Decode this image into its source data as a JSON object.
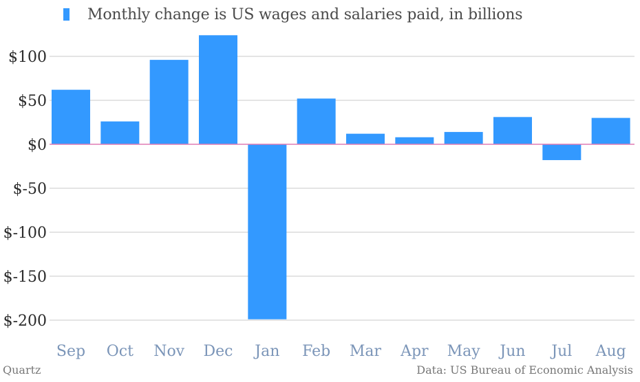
{
  "chart_data": {
    "type": "bar",
    "categories": [
      "Sep",
      "Oct",
      "Nov",
      "Dec",
      "Jan",
      "Feb",
      "Mar",
      "Apr",
      "May",
      "Jun",
      "Jul",
      "Aug"
    ],
    "series": [
      {
        "name": "Monthly change is US wages and salaries paid, in billions",
        "values": [
          62,
          26,
          96,
          124,
          -199,
          52,
          12,
          8,
          14,
          31,
          -18,
          30
        ],
        "color": "#3399ff"
      }
    ],
    "ylim": [
      -200,
      125
    ],
    "yticks": [
      100,
      50,
      0,
      -50,
      -100,
      -150,
      -200
    ],
    "ytick_labels": [
      "$100",
      "$50",
      "$0",
      "$-50",
      "$-100",
      "$-150",
      "$-200"
    ],
    "grid": true,
    "zero_line_color": "#e07bb4",
    "grid_color": "#c8c8c8",
    "tick_label_color": "#2b2b2b",
    "category_label_color": "#7b95b8",
    "legend_position": "top-left"
  },
  "footer": {
    "source_left": "Quartz",
    "source_right": "Data: US Bureau of Economic Analysis"
  }
}
